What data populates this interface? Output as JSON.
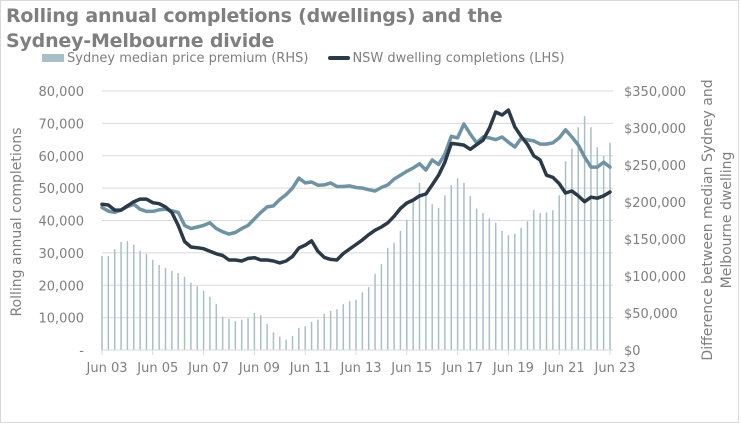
{
  "chart_data": {
    "type": "bar",
    "title": "Rolling annual completions (dwellings) and the Sydney-Melbourne divide",
    "title_lines": [
      "Rolling annual completions (dwellings) and the",
      "Sydney-Melbourne divide"
    ],
    "legend": {
      "placement": "top",
      "entries": [
        {
          "label": "Sydney median price premium (RHS)",
          "kind": "bar",
          "color": "#a9bfc6"
        },
        {
          "label": "NSW dwelling completions (LHS)",
          "kind": "line",
          "color": "#2b3a48"
        }
      ]
    },
    "ylabel_left": "Rolling annual completions",
    "ylabel_right_lines": [
      "Difference between median Sydney and",
      "Melbourne dwelling"
    ],
    "ylim_left": [
      0,
      80000
    ],
    "ylim_right": [
      0,
      350000
    ],
    "yticks_left": [
      "-",
      "10,000",
      "20,000",
      "30,000",
      "40,000",
      "50,000",
      "60,000",
      "70,000",
      "80,000"
    ],
    "yticks_right": [
      "$0",
      "$50,000",
      "$100,000",
      "$150,000",
      "$200,000",
      "$250,000",
      "$300,000",
      "$350,000"
    ],
    "xticks": [
      "Jun 03",
      "Jun 05",
      "Jun 07",
      "Jun 09",
      "Jun 11",
      "Jun 13",
      "Jun 15",
      "Jun 17",
      "Jun 19",
      "Jun 21",
      "Jun 23"
    ],
    "x_start": "Jun 03",
    "x_end": "Jun 23",
    "x_frequency": "quarterly",
    "grid": true,
    "series": [
      {
        "name": "Sydney median price premium (RHS)",
        "type": "bar",
        "axis": "right",
        "color": "#a9bfc6",
        "unit": "$",
        "values": [
          127000,
          127000,
          136000,
          146000,
          147000,
          142000,
          134000,
          130000,
          122000,
          115000,
          111000,
          107000,
          104000,
          99000,
          91000,
          86000,
          80000,
          72000,
          62000,
          45000,
          42000,
          39000,
          41000,
          43000,
          50000,
          47000,
          35000,
          24000,
          18000,
          14000,
          19000,
          30000,
          32000,
          38000,
          41000,
          49000,
          53000,
          55000,
          62000,
          66000,
          68000,
          78000,
          85000,
          103000,
          116000,
          138000,
          145000,
          161000,
          176000,
          200000,
          226000,
          208000,
          197000,
          192000,
          209000,
          223000,
          232000,
          226000,
          208000,
          191000,
          185000,
          178000,
          172000,
          161000,
          155000,
          157000,
          165000,
          174000,
          189000,
          185000,
          186000,
          189000,
          209000,
          255000,
          272000,
          301000,
          316000,
          301000,
          274000,
          262000,
          280000
        ]
      },
      {
        "name": "NSW dwelling completions (LHS)",
        "type": "line",
        "axis": "left",
        "color": "#2b3a48",
        "values": [
          45000,
          44800,
          43200,
          43200,
          44500,
          45800,
          46600,
          46600,
          45500,
          45200,
          44200,
          42500,
          38500,
          33500,
          31800,
          31600,
          31300,
          30500,
          29700,
          29200,
          27800,
          27800,
          27500,
          28300,
          28500,
          27800,
          27800,
          27500,
          26900,
          27500,
          28900,
          31500,
          32400,
          33700,
          30500,
          28600,
          28000,
          27800,
          29800,
          31200,
          32600,
          34000,
          35600,
          37000,
          38000,
          39300,
          41300,
          43700,
          45400,
          46300,
          47600,
          48200,
          51000,
          54000,
          58000,
          63800,
          63600,
          63300,
          62000,
          63400,
          64800,
          68500,
          73500,
          72600,
          74100,
          68900,
          66000,
          63500,
          60000,
          58700,
          54000,
          53300,
          51400,
          48500,
          49100,
          47600,
          45800,
          47200,
          46900,
          47600,
          48800
        ]
      },
      {
        "name": "",
        "type": "line",
        "axis": "left",
        "color": "#6f93a3",
        "values": [
          44000,
          42900,
          42500,
          43200,
          44300,
          45000,
          43500,
          42800,
          42800,
          43300,
          43500,
          43000,
          42500,
          38500,
          37500,
          38000,
          38500,
          39300,
          37500,
          36500,
          35800,
          36300,
          37500,
          38500,
          40500,
          42500,
          44200,
          44500,
          46500,
          48000,
          50000,
          53100,
          51600,
          51900,
          50900,
          51000,
          51600,
          50500,
          50500,
          50700,
          50200,
          50000,
          49500,
          49100,
          50200,
          51000,
          52800,
          54000,
          55200,
          56200,
          57500,
          55600,
          58700,
          57300,
          60500,
          66000,
          65500,
          69800,
          66700,
          64000,
          65800,
          65500,
          65000,
          65800,
          64200,
          62700,
          65300,
          64900,
          64600,
          63600,
          63600,
          64000,
          65500,
          68000,
          65800,
          63300,
          59600,
          56500,
          56500,
          58000,
          56500
        ]
      }
    ]
  }
}
